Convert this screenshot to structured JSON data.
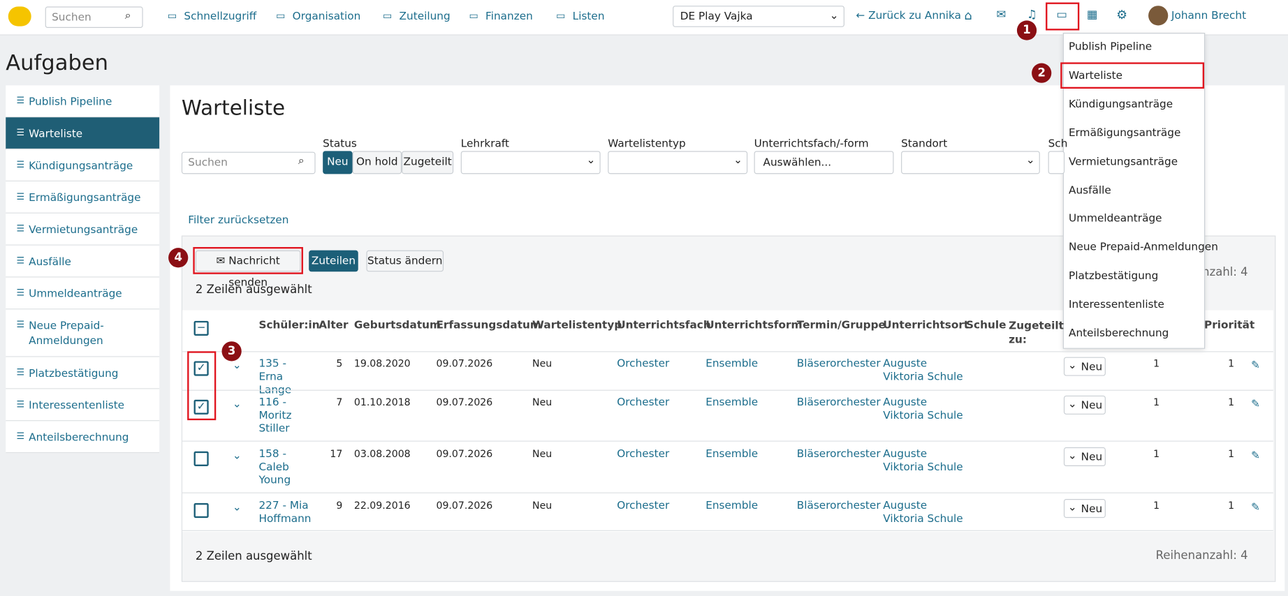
{
  "nav": {
    "search_placeholder": "Suchen",
    "menus": [
      "Schnellzugriff",
      "Organisation",
      "Zuteilung",
      "Finanzen",
      "Listen"
    ],
    "school": "DE Play Vajka",
    "back": "Zurück zu Annika",
    "user": "Johann Brecht"
  },
  "page_title": "Aufgaben",
  "sidebar": [
    "Publish Pipeline",
    "Warteliste",
    "Kündigungsanträge",
    "Ermäßigungsanträge",
    "Vermietungsanträge",
    "Ausfälle",
    "Ummeldeanträge",
    "Neue Prepaid-Anmeldungen",
    "Platzbestätigung",
    "Interessentenliste",
    "Anteilsberechnung"
  ],
  "main": {
    "title": "Warteliste",
    "filters": {
      "search_placeholder": "Suchen",
      "labels": [
        "Status",
        "Lehrkraft",
        "Wartelistentyp",
        "Unterrichtsfach/-form",
        "Standort",
        "Sch"
      ],
      "status_options": [
        "Neu",
        "On hold",
        "Zugeteilt"
      ],
      "subject_placeholder": "Auswählen...",
      "reset": "Filter zurücksetzen"
    },
    "actions": [
      "Nachricht senden",
      "Zuteilen",
      "Status ändern"
    ],
    "selected": "2 Zeilen ausgewählt",
    "row_count": "Reihenanzahl: 4",
    "columns": [
      "Schüler:in",
      "Alter",
      "Geburtsdatum",
      "Erfassungsdatum",
      "Wartelistentyp",
      "Unterrichtsfach",
      "Unterrichtsform",
      "Termin/Gruppe",
      "Unterrichtsort",
      "Schule",
      "Zugeteilt zu:",
      "Priorität"
    ],
    "rows": [
      {
        "checked": true,
        "student": "135 - Erna Lange",
        "age": "5",
        "birth": "19.08.2020",
        "captured": "09.07.2026",
        "type": "Neu",
        "subject": "Orchester",
        "form": "Ensemble",
        "group": "Bläserorchester",
        "place": "Auguste Viktoria Schule",
        "status": "Neu",
        "p1": "1",
        "p2": "1"
      },
      {
        "checked": true,
        "student": "116 - Moritz Stiller",
        "age": "7",
        "birth": "01.10.2018",
        "captured": "09.07.2026",
        "type": "Neu",
        "subject": "Orchester",
        "form": "Ensemble",
        "group": "Bläserorchester",
        "place": "Auguste Viktoria Schule",
        "status": "Neu",
        "p1": "1",
        "p2": "1"
      },
      {
        "checked": false,
        "student": "158 - Caleb Young",
        "age": "17",
        "birth": "03.08.2008",
        "captured": "09.07.2026",
        "type": "Neu",
        "subject": "Orchester",
        "form": "Ensemble",
        "group": "Bläserorchester",
        "place": "Auguste Viktoria Schule",
        "status": "Neu",
        "p1": "1",
        "p2": "1"
      },
      {
        "checked": false,
        "student": "227 - Mia Hoffmann",
        "age": "9",
        "birth": "22.09.2016",
        "captured": "09.07.2026",
        "type": "Neu",
        "subject": "Orchester",
        "form": "Ensemble",
        "group": "Bläserorchester",
        "place": "Auguste Viktoria Schule",
        "status": "Neu",
        "p1": "1",
        "p2": "1"
      }
    ]
  },
  "dropdown": [
    "Publish Pipeline",
    "Warteliste",
    "Kündigungsanträge",
    "Ermäßigungsanträge",
    "Vermietungsanträge",
    "Ausfälle",
    "Ummeldeanträge",
    "Neue Prepaid-Anmeldungen",
    "Platzbestätigung",
    "Interessentenliste",
    "Anteilsberechnung"
  ],
  "badges": [
    "1",
    "2",
    "3",
    "4"
  ]
}
